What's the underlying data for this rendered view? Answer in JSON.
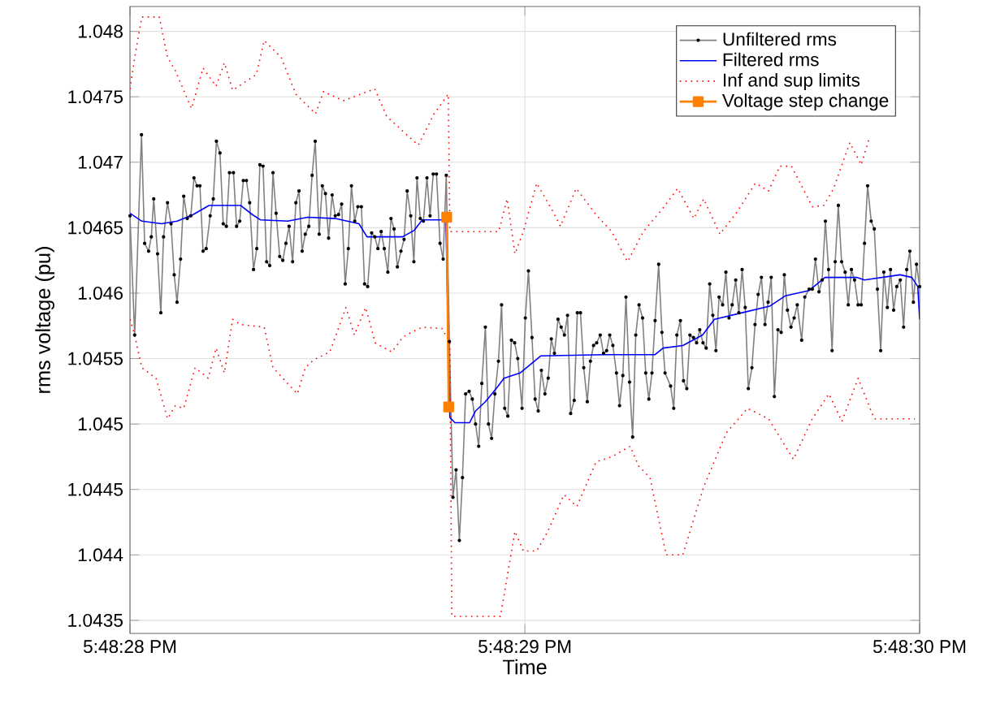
{
  "chart_data": {
    "type": "line",
    "xlabel": "Time",
    "ylabel": "rms voltage (pu)",
    "xlim": [
      17.8077778,
      17.8083333
    ],
    "xticks": [
      {
        "value": 17.8077778,
        "label": "5:48:28 PM"
      },
      {
        "value": 17.8080556,
        "label": "5:48:29 PM"
      },
      {
        "value": 17.8083333,
        "label": "5:48:30 PM"
      }
    ],
    "ylim": [
      1.0434,
      1.04819
    ],
    "yticks": [
      1.0435,
      1.044,
      1.0445,
      1.045,
      1.0455,
      1.046,
      1.0465,
      1.047,
      1.0475,
      1.048
    ],
    "grid": true,
    "legend": "top right",
    "series": [
      {
        "name": "Unfiltered rms",
        "color": "#808080",
        "marker": "circle",
        "line_style": "solid",
        "x": [
          17.8077778,
          17.8077811,
          17.8077859,
          17.8077881,
          17.8077909,
          17.8077928,
          17.8077945,
          17.8077972,
          17.8077995,
          17.8078014,
          17.8078042,
          17.8078067,
          17.8078089,
          17.8078109,
          17.8078134,
          17.8078156,
          17.8078181,
          17.8078206,
          17.8078228,
          17.807825,
          17.807827,
          17.8078292,
          17.8078314,
          17.8078342,
          17.8078364,
          17.8078386,
          17.8078411,
          17.8078434,
          17.8078456,
          17.8078478,
          17.8078506,
          17.8078528,
          17.807855,
          17.8078575,
          17.8078597,
          17.807862,
          17.8078647,
          17.807867,
          17.8078692,
          17.8078714,
          17.8078739,
          17.8078761,
          17.8078784,
          17.8078806,
          17.8078831,
          17.8078853,
          17.8078875,
          17.8078897,
          17.8078922,
          17.8078945,
          17.8078967,
          17.8078989,
          17.8079011,
          17.8079036,
          17.8079059,
          17.8079081,
          17.8079109,
          17.8079131,
          17.8079153,
          17.8079175,
          17.80792,
          17.8079222,
          17.8079245,
          17.8079267,
          17.8079292,
          17.8079314,
          17.8079336,
          17.8079359,
          17.8079381,
          17.8079406,
          17.8079428,
          17.807945,
          17.8079478,
          17.80795,
          17.8079522,
          17.8079545,
          17.8079567,
          17.8079592,
          17.8079614,
          17.8079636,
          17.8079659,
          17.8079684,
          17.8079706,
          17.8079728,
          17.8079753,
          17.8079775,
          17.8079797,
          17.807982,
          17.8079842,
          17.8079867,
          17.8079889,
          17.8079911,
          17.8079934,
          17.8079959,
          17.8079981,
          17.8080003,
          17.8080025,
          17.808005,
          17.8080072,
          17.8080095,
          17.8080117,
          17.8080139,
          17.8080164,
          17.8080186,
          17.8080209,
          17.8080231,
          17.8080253,
          17.8080278,
          17.80803,
          17.8080322,
          17.8080345,
          17.808037,
          17.8080392,
          17.8080414,
          17.8080436,
          17.8080461,
          17.8080484,
          17.8080506,
          17.8080536,
          17.8080559,
          17.8080581,
          17.8080606,
          17.8080628,
          17.808065,
          17.8080672,
          17.8080697,
          17.808072,
          17.8080742,
          17.8080764,
          17.8080789,
          17.8080811,
          17.8080834,
          17.8080856,
          17.8080878,
          17.8080903,
          17.8080925,
          17.8080947,
          17.808097,
          17.8080995,
          17.8081017,
          17.8081039,
          17.8081061,
          17.8081086,
          17.8081109,
          17.8081131,
          17.8081153,
          17.8081175,
          17.80812,
          17.8081222,
          17.8081245,
          17.8081267,
          17.8081292,
          17.8081314,
          17.8081336,
          17.8081359,
          17.8081384,
          17.8081406,
          17.8081428,
          17.808145,
          17.8081472,
          17.8081497,
          17.808152,
          17.8081542,
          17.8081581,
          17.8081603,
          17.8081625,
          17.808165,
          17.8081672,
          17.8081695,
          17.8081717,
          17.8081742,
          17.8081764,
          17.8081786,
          17.8081809,
          17.8081831,
          17.8081856,
          17.8081878,
          17.80819,
          17.8081922,
          17.8081947,
          17.808197,
          17.8081992,
          17.8082014,
          17.8082039,
          17.8082061,
          17.8082084,
          17.8082106,
          17.8082128,
          17.8082153,
          17.8082175,
          17.8082197,
          17.808222,
          17.8082245,
          17.8082267,
          17.8082289,
          17.8082311,
          17.8082336,
          17.8082359,
          17.8082381,
          17.8082403,
          17.8082428,
          17.808245,
          17.8082472,
          17.8082503,
          17.8082525,
          17.8082556,
          17.8082578,
          17.80826,
          17.8082625,
          17.8082647,
          17.808267,
          17.8082692,
          17.8082717,
          17.8082739,
          17.8082761,
          17.8082784,
          17.8082809,
          17.8082831,
          17.8082853,
          17.8082875,
          17.80829,
          17.8082922,
          17.8082945,
          17.8082967,
          17.8082992,
          17.8083014,
          17.8083036,
          17.8083059,
          17.8083081,
          17.8083106,
          17.8083128,
          17.808315,
          17.8083172,
          17.8083197,
          17.808322,
          17.8083242,
          17.8083264,
          17.8083289,
          17.8083311,
          17.8083333
        ],
        "values": [
          1.04659,
          1.04568,
          1.04721,
          1.04638,
          1.04632,
          1.04643,
          1.04672,
          1.0463,
          1.04585,
          1.04643,
          1.04669,
          1.04653,
          1.04614,
          1.04593,
          1.04626,
          1.04674,
          1.04657,
          1.04659,
          1.04688,
          1.04682,
          1.04682,
          1.04632,
          1.04634,
          1.04659,
          1.04672,
          1.04716,
          1.04707,
          1.04653,
          1.04651,
          1.04692,
          1.04692,
          1.04651,
          1.04655,
          1.04686,
          1.04686,
          1.04669,
          1.04618,
          1.04634,
          1.04698,
          1.04697,
          1.04624,
          1.04621,
          1.04692,
          1.04661,
          1.04628,
          1.04625,
          1.04638,
          1.04651,
          1.04624,
          1.04669,
          1.04678,
          1.04632,
          1.04645,
          1.04651,
          1.0469,
          1.04716,
          1.04645,
          1.04682,
          1.04676,
          1.04642,
          1.04675,
          1.04659,
          1.0466,
          1.04668,
          1.04607,
          1.04634,
          1.04682,
          1.04655,
          1.04666,
          1.04666,
          1.04607,
          1.04605,
          1.04646,
          1.04643,
          1.04634,
          1.04647,
          1.04634,
          1.04616,
          1.04657,
          1.04649,
          1.0462,
          1.04632,
          1.04641,
          1.04678,
          1.04659,
          1.04624,
          1.04688,
          1.04657,
          1.04655,
          1.04688,
          1.04659,
          1.04691,
          1.04691,
          1.04638,
          1.04626,
          1.0469,
          1.04563,
          1.04444,
          1.04465,
          1.04411,
          1.04459,
          1.04523,
          1.04525,
          1.04519,
          1.045,
          1.04483,
          1.04531,
          1.04574,
          1.045,
          1.04489,
          1.04523,
          1.04548,
          1.04591,
          1.04512,
          1.04506,
          1.04564,
          1.04562,
          1.0455,
          1.04512,
          1.04581,
          1.04617,
          1.04566,
          1.04519,
          1.0451,
          1.04541,
          1.04523,
          1.04535,
          1.04565,
          1.04554,
          1.0458,
          1.04574,
          1.04568,
          1.04583,
          1.04508,
          1.04518,
          1.04585,
          1.04585,
          1.04543,
          1.04517,
          1.04548,
          1.0456,
          1.04562,
          1.04568,
          1.04554,
          1.04556,
          1.04568,
          1.0456,
          1.04539,
          1.04514,
          1.04537,
          1.04597,
          1.04532,
          1.0449,
          1.04568,
          1.04591,
          1.04581,
          1.04539,
          1.04519,
          1.04539,
          1.04579,
          1.04622,
          1.0457,
          1.04539,
          1.04529,
          1.04512,
          1.04568,
          1.04579,
          1.04533,
          1.04527,
          1.04568,
          1.04566,
          1.04562,
          1.04572,
          1.04562,
          1.04558,
          1.04607,
          1.04583,
          1.04556,
          1.04597,
          1.04591,
          1.04616,
          1.04581,
          1.04591,
          1.0461,
          1.04585,
          1.04618,
          1.04589,
          1.04527,
          1.04543,
          1.04576,
          1.04599,
          1.04612,
          1.04576,
          1.04593,
          1.04612,
          1.04521,
          1.04572,
          1.0457,
          1.04614,
          1.04587,
          1.04574,
          1.04581,
          1.04591,
          1.04564,
          1.04597,
          1.04603,
          1.04603,
          1.04626,
          1.04601,
          1.0461,
          1.04655,
          1.04618,
          1.04556,
          1.04624,
          1.04667,
          1.04624,
          1.04616,
          1.04591,
          1.04618,
          1.0461,
          1.04591,
          1.04591,
          1.04638,
          1.04682,
          1.04655,
          1.04649,
          1.04603,
          1.04556,
          1.04616,
          1.04589,
          1.04618,
          1.04587,
          1.04605,
          1.0461,
          1.04574,
          1.04618,
          1.04632,
          1.04593,
          1.04622,
          1.04605
        ]
      },
      {
        "name": "Filtered rms",
        "color": "#0000ff",
        "marker": "none",
        "line_style": "solid",
        "x": [
          17.8077778,
          17.8077861,
          17.8078,
          17.8078111,
          17.8078222,
          17.8078334,
          17.8078556,
          17.8078639,
          17.8078695,
          17.8078889,
          17.8079028,
          17.8079222,
          17.8079389,
          17.8079445,
          17.8079695,
          17.8079778,
          17.8079834,
          17.8079972,
          17.808,
          17.8080028,
          17.8080064,
          17.8080167,
          17.8080209,
          17.8080278,
          17.8080361,
          17.8080409,
          17.8080522,
          17.8080667,
          17.8081111,
          17.8081472,
          17.8081528,
          17.8081667,
          17.8081806,
          17.8081889,
          17.8082084,
          17.8082278,
          17.8082389,
          17.8082556,
          17.8082667,
          17.8082889,
          17.8082945,
          17.8083195,
          17.8083278,
          17.808332,
          17.8083333
        ],
        "values": [
          1.04661,
          1.04655,
          1.04653,
          1.04655,
          1.0466,
          1.04667,
          1.04667,
          1.0466,
          1.04656,
          1.04655,
          1.04658,
          1.04657,
          1.04653,
          1.04643,
          1.04643,
          1.04648,
          1.04656,
          1.04656,
          1.04658,
          1.04505,
          1.04501,
          1.04501,
          1.0451,
          1.04517,
          1.04528,
          1.04535,
          1.04539,
          1.04552,
          1.04553,
          1.04553,
          1.04558,
          1.0456,
          1.04568,
          1.0458,
          1.04585,
          1.0459,
          1.04598,
          1.04602,
          1.04612,
          1.04612,
          1.0461,
          1.04614,
          1.04612,
          1.04605,
          1.0458
        ]
      },
      {
        "name": "Inf and sup limits",
        "color": "#ff0000",
        "marker": "none",
        "line_style": "dotted",
        "x": [
          17.8077778,
          17.8077811,
          17.8077861,
          17.8077984,
          17.8078042,
          17.8078097,
          17.8078211,
          17.8078292,
          17.8078384,
          17.8078442,
          17.80785,
          17.8078667,
          17.8078722,
          17.8078842,
          17.8078945,
          17.8079084,
          17.8079139,
          17.8079278,
          17.80795,
          17.8079584,
          17.8079695,
          17.8079806,
          17.8079917,
          17.8080017,
          17.8080028,
          17.8080372,
          17.8080431,
          17.8080486,
          17.8080545,
          17.8080639,
          17.808075,
          17.8080806,
          17.8080917,
          17.8081056,
          17.8081167,
          17.8081278,
          17.8081389,
          17.8081514,
          17.8081631,
          17.8081745,
          17.8081814,
          17.8081928,
          17.8082042,
          17.8082178,
          17.808227,
          17.808235,
          17.8082431,
          17.8082578,
          17.8082659,
          17.8082728,
          17.8082842,
          17.8082922,
          17.8082978
        ],
        "values": [
          1.04756,
          1.0478,
          1.04811,
          1.04811,
          1.0478,
          1.0477,
          1.04741,
          1.04772,
          1.04758,
          1.04776,
          1.04755,
          1.04767,
          1.04793,
          1.0478,
          1.04752,
          1.04737,
          1.04754,
          1.04747,
          1.04756,
          1.04735,
          1.04724,
          1.04713,
          1.04737,
          1.04752,
          1.04647,
          1.04647,
          1.04672,
          1.0463,
          1.04647,
          1.04684,
          1.04663,
          1.04651,
          1.0468,
          1.0466,
          1.04647,
          1.04624,
          1.04647,
          1.04663,
          1.0468,
          1.04657,
          1.04672,
          1.04645,
          1.04661,
          1.04684,
          1.04678,
          1.04697,
          1.04697,
          1.04666,
          1.04667,
          1.0468,
          1.04715,
          1.04698,
          1.04718
        ]
      },
      {
        "color": "#ff0000",
        "marker": "none",
        "line_style": "dotted",
        "x": [
          17.8077778,
          17.8077811,
          17.8077861,
          17.8077961,
          17.8078042,
          17.8078097,
          17.8078156,
          17.8078236,
          17.8078328,
          17.8078384,
          17.8078442,
          17.80785,
          17.8078556,
          17.8078722,
          17.8078784,
          17.8078956,
          17.8079011,
          17.807907,
          17.8079184,
          17.8079297,
          17.8079356,
          17.8079436,
          17.8079503,
          17.807962,
          17.8079695,
          17.8079722,
          17.8079834,
          17.8079972,
          17.8080028,
          17.8080042,
          17.8080384,
          17.8080486,
          17.8080545,
          17.8080639,
          17.8080717,
          17.8080831,
          17.8080922,
          17.8081056,
          17.8081167,
          17.8081297,
          17.8081356,
          17.8081436,
          17.808155,
          17.8081667,
          17.8081814,
          17.8081972,
          17.8082122,
          17.808227,
          17.8082445,
          17.8082578,
          17.8082695,
          17.8082786,
          17.80829,
          17.8083014,
          17.808315,
          17.80833
        ],
        "values": [
          1.0458,
          1.04568,
          1.04543,
          1.04535,
          1.04504,
          1.04514,
          1.04512,
          1.04543,
          1.04535,
          1.04558,
          1.04539,
          1.0458,
          1.04576,
          1.04574,
          1.04543,
          1.04523,
          1.04543,
          1.04549,
          1.04555,
          1.04589,
          1.04568,
          1.04589,
          1.04562,
          1.04555,
          1.04566,
          1.04568,
          1.04574,
          1.04573,
          1.04562,
          1.04353,
          1.04353,
          1.04418,
          1.04403,
          1.04403,
          1.04418,
          1.04446,
          1.04437,
          1.04471,
          1.04475,
          1.04483,
          1.04468,
          1.04459,
          1.044,
          1.044,
          1.04452,
          1.04493,
          1.04512,
          1.04504,
          1.04473,
          1.04504,
          1.04523,
          1.04502,
          1.04535,
          1.04504,
          1.04504,
          1.04504
        ]
      },
      {
        "name": "Voltage step change",
        "color": "#ff8000",
        "marker": "square",
        "line_style": "solid",
        "x": [
          17.8080006,
          17.808002
        ],
        "values": [
          1.04658,
          1.04513
        ]
      }
    ]
  }
}
